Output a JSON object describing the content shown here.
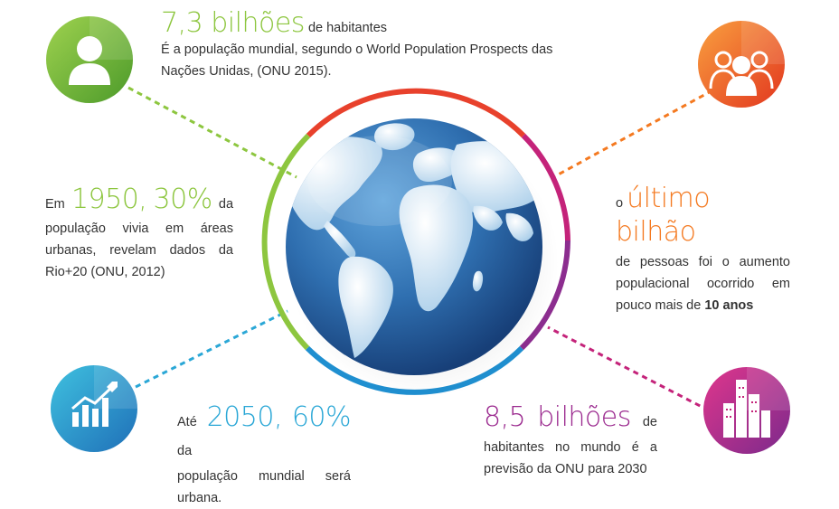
{
  "colors": {
    "green": "#8dc63f",
    "orange": "#f47920",
    "red": "#e8412c",
    "magenta": "#c4237a",
    "purple": "#8c2d8f",
    "blue": "#2c8fd0",
    "teal": "#1fb5c9",
    "ocean": "#2d6fb0",
    "land": "#c9e3f5"
  },
  "icons": {
    "top_left": "person-icon",
    "top_right": "group-icon",
    "bottom_left": "growth-chart-icon",
    "bottom_right": "city-buildings-icon",
    "center": "globe-icon"
  },
  "block_top": {
    "highlight": "7,3 bilhões",
    "suffix": "de habitantes",
    "line2": "É a população mundial, segundo o World Population Prospects das",
    "line3": "Nações Unidas, (ONU 2015)."
  },
  "block_left": {
    "w1": "Em",
    "w2": "1950,",
    "w3": "30%",
    "w4": "da",
    "line2": "população vivia em áreas",
    "line3": "urbanas, revelam dados da",
    "line4": "Rio+20 (ONU, 2012)"
  },
  "block_right": {
    "prefix": "o",
    "highlight": "último bilhão",
    "line2": "de pessoas foi o aumento",
    "line3": "populacional ocorrido em",
    "line4_pre": "pouco mais de",
    "line4_bold": "10 anos"
  },
  "block_bottom_left": {
    "w1": "Até",
    "w2": "2050,",
    "w3": "60%",
    "w4": "da",
    "line2": "população mundial será",
    "line3": "urbana."
  },
  "block_bottom_right": {
    "w1": "8,5",
    "w2": "bilhões",
    "w3": "de",
    "line2": "habitantes no mundo é a",
    "line3": "previsão da ONU para 2030"
  }
}
